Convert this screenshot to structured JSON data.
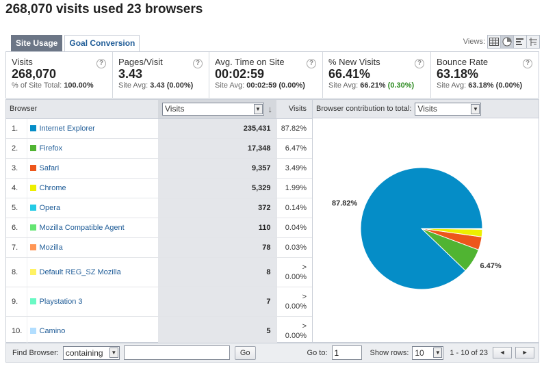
{
  "page": {
    "title": "268,070 visits used 23 browsers"
  },
  "tabs": [
    {
      "label": "Site Usage",
      "active": true
    },
    {
      "label": "Goal Conversion",
      "active": false
    }
  ],
  "views": {
    "label": "Views:",
    "icons": [
      "table-view-icon",
      "pie-view-icon",
      "performance-view-icon",
      "pivot-view-icon"
    ],
    "active": "pie-view-icon"
  },
  "scorecard": [
    {
      "label": "Visits",
      "value": "268,070",
      "sub_prefix": "% of Site Total: ",
      "sub_value": "100.00%",
      "sub_suffix": ""
    },
    {
      "label": "Pages/Visit",
      "value": "3.43",
      "sub_prefix": "Site Avg: ",
      "sub_value": "3.43",
      "sub_suffix": " (0.00%)"
    },
    {
      "label": "Avg. Time on Site",
      "value": "00:02:59",
      "sub_prefix": "Site Avg: ",
      "sub_value": "00:02:59",
      "sub_suffix": " (0.00%)"
    },
    {
      "label": "% New Visits",
      "value": "66.41%",
      "sub_prefix": "Site Avg: ",
      "sub_value": "66.21%",
      "sub_suffix": " (0.30%)"
    },
    {
      "label": "Bounce Rate",
      "value": "63.18%",
      "sub_prefix": "Site Avg: ",
      "sub_value": "63.18%",
      "sub_suffix": " (0.00%)"
    }
  ],
  "table": {
    "headers": {
      "browser": "Browser",
      "sort_select": "Visits",
      "visits": "Visits"
    },
    "rows": [
      {
        "rank": "1.",
        "name": "Internet Explorer",
        "color": "#058dc7",
        "visits": "235,431",
        "pct_pre": "",
        "pct": "87.82%"
      },
      {
        "rank": "2.",
        "name": "Firefox",
        "color": "#50b432",
        "visits": "17,348",
        "pct_pre": "",
        "pct": "6.47%"
      },
      {
        "rank": "3.",
        "name": "Safari",
        "color": "#ed561b",
        "visits": "9,357",
        "pct_pre": "",
        "pct": "3.49%"
      },
      {
        "rank": "4.",
        "name": "Chrome",
        "color": "#edef00",
        "visits": "5,329",
        "pct_pre": "",
        "pct": "1.99%"
      },
      {
        "rank": "5.",
        "name": "Opera",
        "color": "#24cbe5",
        "visits": "372",
        "pct_pre": "",
        "pct": "0.14%"
      },
      {
        "rank": "6.",
        "name": "Mozilla Compatible Agent",
        "color": "#64e572",
        "visits": "110",
        "pct_pre": "",
        "pct": "0.04%"
      },
      {
        "rank": "7.",
        "name": "Mozilla",
        "color": "#ff9655",
        "visits": "78",
        "pct_pre": "",
        "pct": "0.03%"
      },
      {
        "rank": "8.",
        "name": "Default REG_SZ Mozilla",
        "color": "#fff263",
        "visits": "8",
        "pct_pre": ">",
        "pct": "0.00%"
      },
      {
        "rank": "9.",
        "name": "Playstation 3",
        "color": "#6af9c4",
        "visits": "7",
        "pct_pre": ">",
        "pct": "0.00%"
      },
      {
        "rank": "10.",
        "name": "Camino",
        "color": "#b2deff",
        "visits": "5",
        "pct_pre": ">",
        "pct": "0.00%"
      }
    ]
  },
  "chart_panel": {
    "label": "Browser contribution to total:",
    "select": "Visits"
  },
  "chart_data": {
    "type": "pie",
    "categories": [
      "Internet Explorer",
      "Firefox",
      "Safari",
      "Chrome",
      "Opera",
      "Mozilla Compatible Agent",
      "Mozilla",
      "Default REG_SZ Mozilla",
      "Playstation 3",
      "Camino"
    ],
    "values": [
      235431,
      17348,
      9357,
      5329,
      372,
      110,
      78,
      8,
      7,
      5
    ],
    "colors": [
      "#058dc7",
      "#50b432",
      "#ed561b",
      "#edef00",
      "#24cbe5",
      "#64e572",
      "#ff9655",
      "#fff263",
      "#6af9c4",
      "#b2deff"
    ],
    "data_labels": [
      {
        "series": "Internet Explorer",
        "text": "87.82%"
      },
      {
        "series": "Firefox",
        "text": "6.47%"
      }
    ],
    "title": "",
    "legend": "none"
  },
  "footer": {
    "find_label": "Find Browser:",
    "match_select": "containing",
    "find_value": "",
    "go_button": "Go",
    "goto_label": "Go to:",
    "goto_value": "1",
    "rows_label": "Show rows:",
    "rows_select": "10",
    "range": "1 - 10 of 23",
    "prev": "◄",
    "next": "►"
  }
}
